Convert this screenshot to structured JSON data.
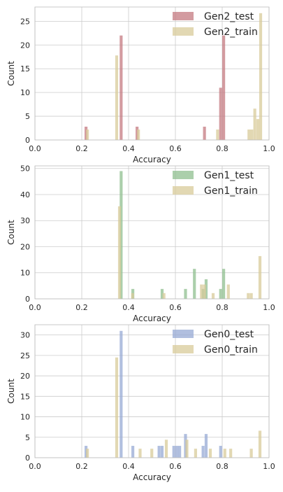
{
  "chart_data": [
    {
      "type": "histogram",
      "xlabel": "Accuracy",
      "ylabel": "Count",
      "xlim": [
        0,
        1
      ],
      "ylim": [
        0,
        28
      ],
      "xticks": [
        "0.0",
        "0.2",
        "0.4",
        "0.6",
        "0.8",
        "1.0"
      ],
      "yticks": [
        "0",
        "5",
        "10",
        "15",
        "20",
        "25"
      ],
      "ytick_values": [
        0,
        5,
        10,
        15,
        20,
        25
      ],
      "grid": true,
      "legend_position": "top-right",
      "bin_width": 0.0125,
      "series": [
        {
          "name": "Gen2_test",
          "color": "#c47a80",
          "bins": [
            [
              0.212,
              2.8
            ],
            [
              0.362,
              22
            ],
            [
              0.43,
              2.8
            ],
            [
              0.718,
              2.8
            ],
            [
              0.787,
              11
            ],
            [
              0.8,
              22
            ]
          ]
        },
        {
          "name": "Gen2_train",
          "color": "#d8cb9a",
          "bins": [
            [
              0.218,
              2.2
            ],
            [
              0.343,
              17.8
            ],
            [
              0.436,
              2.2
            ],
            [
              0.774,
              2.2
            ],
            [
              0.908,
              2.2
            ],
            [
              0.92,
              2.2
            ],
            [
              0.933,
              6.6
            ],
            [
              0.946,
              4.4
            ],
            [
              0.958,
              26.7
            ]
          ]
        }
      ]
    },
    {
      "type": "histogram",
      "xlabel": "Accuracy",
      "ylabel": "Count",
      "xlim": [
        0,
        1
      ],
      "ylim": [
        0,
        51
      ],
      "xticks": [
        "0.0",
        "0.2",
        "0.4",
        "0.6",
        "0.8",
        "1.0"
      ],
      "yticks": [
        "0",
        "10",
        "20",
        "30",
        "40",
        "50"
      ],
      "ytick_values": [
        0,
        10,
        20,
        30,
        40,
        50
      ],
      "grid": true,
      "legend_position": "top-right",
      "bin_width": 0.0125,
      "series": [
        {
          "name": "Gen1_test",
          "color": "#8fbf8f",
          "bins": [
            [
              0.362,
              49
            ],
            [
              0.412,
              3.8
            ],
            [
              0.537,
              3.8
            ],
            [
              0.637,
              3.8
            ],
            [
              0.675,
              11.5
            ],
            [
              0.712,
              3.8
            ],
            [
              0.725,
              7.5
            ],
            [
              0.787,
              3.8
            ],
            [
              0.8,
              11.5
            ]
          ]
        },
        {
          "name": "Gen1_train",
          "color": "#d8cb9a",
          "bins": [
            [
              0.355,
              35.5
            ],
            [
              0.411,
              2.2
            ],
            [
              0.545,
              2.2
            ],
            [
              0.705,
              5.5
            ],
            [
              0.718,
              5.5
            ],
            [
              0.755,
              2.2
            ],
            [
              0.82,
              5.5
            ],
            [
              0.905,
              2.2
            ],
            [
              0.918,
              2.2
            ],
            [
              0.955,
              16.4
            ]
          ]
        }
      ]
    },
    {
      "type": "histogram",
      "xlabel": "Accuracy",
      "ylabel": "Count",
      "xlim": [
        0,
        1
      ],
      "ylim": [
        0,
        32.5
      ],
      "xticks": [
        "0.0",
        "0.2",
        "0.4",
        "0.6",
        "0.8",
        "1.0"
      ],
      "yticks": [
        "0",
        "5",
        "10",
        "15",
        "20",
        "25",
        "30"
      ],
      "ytick_values": [
        0,
        5,
        10,
        15,
        20,
        25,
        30
      ],
      "grid": true,
      "legend_position": "top-right",
      "bin_width": 0.0125,
      "series": [
        {
          "name": "Gen0_test",
          "color": "#97aad4",
          "bins": [
            [
              0.212,
              2.9
            ],
            [
              0.362,
              31
            ],
            [
              0.412,
              2.9
            ],
            [
              0.524,
              2.9
            ],
            [
              0.537,
              2.9
            ],
            [
              0.587,
              2.9
            ],
            [
              0.6,
              2.9
            ],
            [
              0.612,
              2.9
            ],
            [
              0.637,
              5.8
            ],
            [
              0.712,
              2.9
            ],
            [
              0.725,
              5.8
            ],
            [
              0.787,
              2.9
            ]
          ]
        },
        {
          "name": "Gen0_train",
          "color": "#d8cb9a",
          "bins": [
            [
              0.218,
              2.2
            ],
            [
              0.343,
              24.5
            ],
            [
              0.443,
              2.2
            ],
            [
              0.493,
              2.2
            ],
            [
              0.555,
              4.4
            ],
            [
              0.643,
              4.4
            ],
            [
              0.68,
              2.2
            ],
            [
              0.743,
              2.2
            ],
            [
              0.805,
              2.2
            ],
            [
              0.83,
              2.2
            ],
            [
              0.918,
              2.2
            ],
            [
              0.955,
              6.6
            ]
          ]
        }
      ]
    }
  ]
}
